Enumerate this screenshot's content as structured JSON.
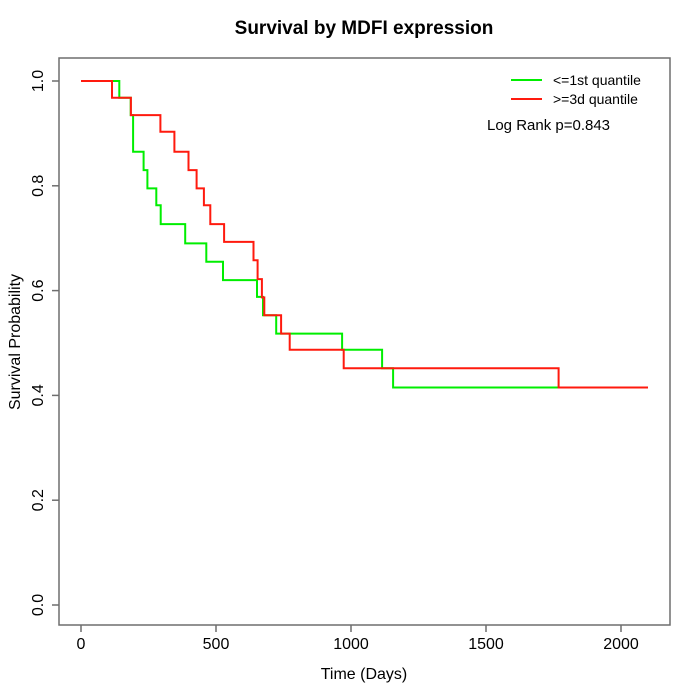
{
  "title": "Survival by MDFI expression",
  "chart_data": {
    "type": "line",
    "subtype": "kaplan-meier-step",
    "title": "Survival by MDFI expression",
    "xlabel": "Time (Days)",
    "ylabel": "Survival Probability",
    "xlim": [
      0,
      2171
    ],
    "ylim": [
      0,
      1
    ],
    "x_ticks": [
      0,
      500,
      1000,
      1500,
      2000
    ],
    "x_tick_labels": [
      "0",
      "500",
      "1000",
      "1500",
      "2000"
    ],
    "y_ticks": [
      0.0,
      0.2,
      0.4,
      0.6,
      0.8,
      1.0
    ],
    "y_tick_labels": [
      "0.0",
      "0.2",
      "0.4",
      "0.6",
      "0.8",
      "1.0"
    ],
    "grid": false,
    "legend_position": "top-right",
    "annotation": "Log Rank p=0.843",
    "axis_color": "#6e6e6e",
    "tick_text_color": "#000000",
    "series": [
      {
        "name": "<=1st quantile",
        "color": "#00ee00",
        "end_time": 2035,
        "points": [
          [
            0,
            1.0
          ],
          [
            142,
            0.968
          ],
          [
            184,
            0.935
          ],
          [
            193,
            0.865
          ],
          [
            232,
            0.83
          ],
          [
            246,
            0.795
          ],
          [
            279,
            0.763
          ],
          [
            295,
            0.727
          ],
          [
            386,
            0.69
          ],
          [
            464,
            0.655
          ],
          [
            526,
            0.62
          ],
          [
            652,
            0.588
          ],
          [
            674,
            0.553
          ],
          [
            723,
            0.518
          ],
          [
            967,
            0.487
          ],
          [
            1115,
            0.452
          ],
          [
            1156,
            0.415
          ]
        ]
      },
      {
        "name": ">=3d quantile",
        "color": "#ff1a0e",
        "end_time": 2100,
        "points": [
          [
            0,
            1.0
          ],
          [
            115,
            0.968
          ],
          [
            185,
            0.935
          ],
          [
            294,
            0.903
          ],
          [
            346,
            0.865
          ],
          [
            398,
            0.83
          ],
          [
            428,
            0.795
          ],
          [
            455,
            0.763
          ],
          [
            479,
            0.727
          ],
          [
            530,
            0.693
          ],
          [
            639,
            0.658
          ],
          [
            654,
            0.622
          ],
          [
            670,
            0.587
          ],
          [
            679,
            0.553
          ],
          [
            741,
            0.518
          ],
          [
            773,
            0.487
          ],
          [
            973,
            0.452
          ],
          [
            1769,
            0.415
          ]
        ]
      }
    ]
  }
}
